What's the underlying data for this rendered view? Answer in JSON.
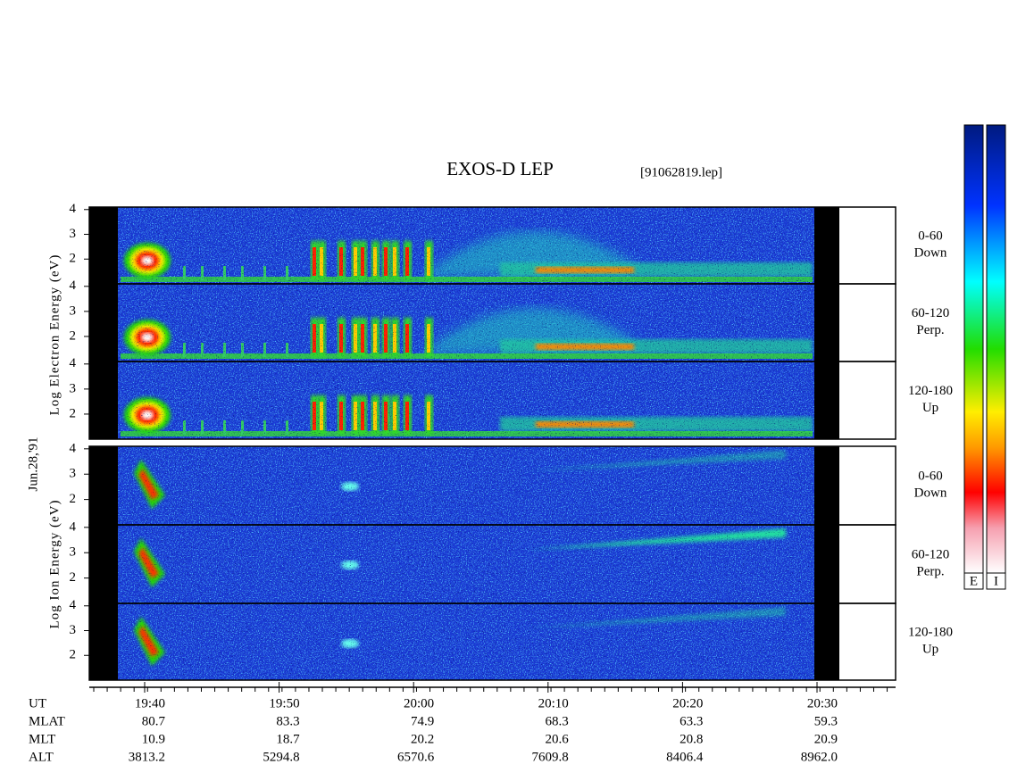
{
  "chart_data": {
    "type": "spectrogram",
    "title": "EXOS-D LEP",
    "subtitle": "[91062819.lep]",
    "date": "Jun.28,'91",
    "y_labels": [
      "Log Electron Energy (eV)",
      "Log Ion Energy (eV)"
    ],
    "ylim": [
      1,
      4.1
    ],
    "yticks": [
      2,
      3,
      4
    ],
    "panels": [
      {
        "angle": "0-60",
        "direction": "Down"
      },
      {
        "angle": "60-120",
        "direction": "Perp."
      },
      {
        "angle": "120-180",
        "direction": "Up"
      },
      {
        "angle": "0-60",
        "direction": "Down"
      },
      {
        "angle": "60-120",
        "direction": "Perp."
      },
      {
        "angle": "120-180",
        "direction": "Up"
      }
    ],
    "colorbar_labels": [
      "E",
      "I"
    ],
    "ephemeris": [
      {
        "name": "UT",
        "values": [
          "19:40",
          "19:50",
          "20:00",
          "20:10",
          "20:20",
          "20:30"
        ]
      },
      {
        "name": "MLAT",
        "values": [
          "80.7",
          "83.3",
          "74.9",
          "68.3",
          "63.3",
          "59.3"
        ]
      },
      {
        "name": "MLT",
        "values": [
          "10.9",
          "18.7",
          "20.2",
          "20.6",
          "20.8",
          "20.9"
        ]
      },
      {
        "name": "ALT",
        "values": [
          "3813.2",
          "5294.8",
          "6570.6",
          "7609.8",
          "8406.4",
          "8962.0"
        ]
      }
    ]
  }
}
